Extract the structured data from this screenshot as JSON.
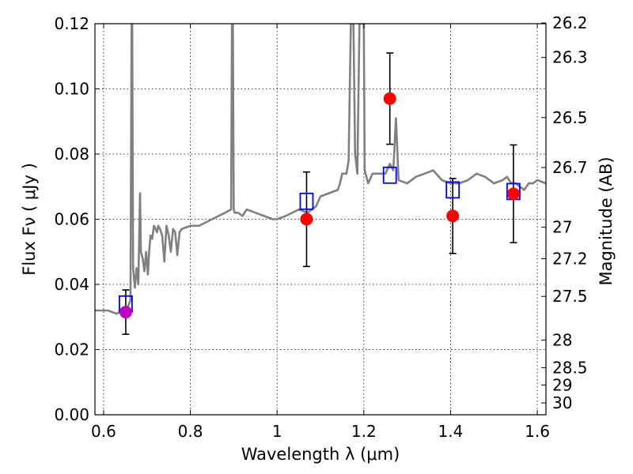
{
  "chart_data": {
    "type": "scatter",
    "title": "",
    "xlabel": "Wavelength  λ (μm)",
    "ylabel": "Flux  Fν  ( μJy )",
    "y2label": "Magnitude (AB)",
    "xlim": [
      0.58,
      1.62
    ],
    "ylim": [
      0.0,
      0.12
    ],
    "x_ticks": [
      0.6,
      0.8,
      1.0,
      1.2,
      1.4,
      1.6
    ],
    "x_tick_labels": [
      "0.6",
      "0.8",
      "1",
      "1.2",
      "1.4",
      "1.6"
    ],
    "y_ticks": [
      0.0,
      0.02,
      0.04,
      0.06,
      0.08,
      0.1,
      0.12
    ],
    "y_tick_labels": [
      "0.00",
      "0.02",
      "0.04",
      "0.06",
      "0.08",
      "0.10",
      "0.12"
    ],
    "mag_ticks": [
      26.2,
      26.3,
      26.5,
      26.7,
      27.0,
      27.2,
      27.5,
      28.0,
      28.5,
      29.0,
      30.0
    ],
    "mag_tick_labels": [
      "26.2",
      "26.3",
      "26.5",
      "26.7",
      "27",
      "27.2",
      "27.5",
      "28",
      "28.5",
      "29",
      "30"
    ],
    "grid": true,
    "colors": {
      "spectrum": "#808080",
      "observed": "#ff0000",
      "observed_first": "#c000c0",
      "model": "#0000ff",
      "errorbar": "#000000"
    },
    "spectrum": {
      "x": [
        0.58,
        0.61,
        0.63,
        0.645,
        0.655,
        0.662,
        0.6645,
        0.666,
        0.668,
        0.672,
        0.676,
        0.68,
        0.684,
        0.686,
        0.69,
        0.694,
        0.698,
        0.702,
        0.705,
        0.708,
        0.712,
        0.716,
        0.72,
        0.723,
        0.726,
        0.73,
        0.735,
        0.74,
        0.745,
        0.75,
        0.755,
        0.76,
        0.765,
        0.77,
        0.775,
        0.78,
        0.8,
        0.82,
        0.85,
        0.88,
        0.894,
        0.896,
        0.898,
        0.9,
        0.902,
        0.91,
        0.92,
        0.93,
        0.95,
        0.97,
        0.99,
        1.0,
        1.02,
        1.05,
        1.07,
        1.09,
        1.1,
        1.12,
        1.14,
        1.145,
        1.15,
        1.16,
        1.165,
        1.17,
        1.172,
        1.174,
        1.176,
        1.18,
        1.185,
        1.19,
        1.2,
        1.202,
        1.21,
        1.22,
        1.24,
        1.25,
        1.26,
        1.268,
        1.274,
        1.28,
        1.3,
        1.32,
        1.34,
        1.36,
        1.38,
        1.4,
        1.42,
        1.44,
        1.46,
        1.48,
        1.5,
        1.52,
        1.53,
        1.54,
        1.55,
        1.56,
        1.57,
        1.58,
        1.59,
        1.6,
        1.62
      ],
      "y": [
        0.032,
        0.032,
        0.031,
        0.032,
        0.033,
        0.035,
        0.12,
        0.12,
        0.045,
        0.039,
        0.045,
        0.04,
        0.068,
        0.05,
        0.048,
        0.044,
        0.05,
        0.043,
        0.05,
        0.055,
        0.054,
        0.058,
        0.057,
        0.056,
        0.058,
        0.057,
        0.055,
        0.047,
        0.058,
        0.055,
        0.05,
        0.057,
        0.056,
        0.049,
        0.056,
        0.057,
        0.058,
        0.058,
        0.06,
        0.062,
        0.063,
        0.12,
        0.12,
        0.063,
        0.062,
        0.062,
        0.061,
        0.063,
        0.062,
        0.061,
        0.06,
        0.06,
        0.061,
        0.063,
        0.062,
        0.064,
        0.067,
        0.068,
        0.069,
        0.071,
        0.074,
        0.074,
        0.078,
        0.12,
        0.12,
        0.12,
        0.12,
        0.08,
        0.074,
        0.12,
        0.12,
        0.075,
        0.071,
        0.074,
        0.074,
        0.074,
        0.077,
        0.075,
        0.091,
        0.072,
        0.071,
        0.073,
        0.074,
        0.075,
        0.072,
        0.071,
        0.071,
        0.072,
        0.074,
        0.073,
        0.071,
        0.072,
        0.073,
        0.071,
        0.071,
        0.07,
        0.069,
        0.071,
        0.071,
        0.072,
        0.071
      ]
    },
    "observed": [
      {
        "x": 0.651,
        "y": 0.0315,
        "err": 0.0068
      },
      {
        "x": 1.068,
        "y": 0.06,
        "err": 0.0145
      },
      {
        "x": 1.26,
        "y": 0.097,
        "err": 0.014
      },
      {
        "x": 1.405,
        "y": 0.061,
        "err": 0.0115
      },
      {
        "x": 1.545,
        "y": 0.0678,
        "err": 0.015
      }
    ],
    "model": [
      {
        "x": 0.651,
        "y": 0.034
      },
      {
        "x": 1.068,
        "y": 0.0655
      },
      {
        "x": 1.26,
        "y": 0.0735
      },
      {
        "x": 1.405,
        "y": 0.069
      },
      {
        "x": 1.545,
        "y": 0.0685
      }
    ]
  }
}
